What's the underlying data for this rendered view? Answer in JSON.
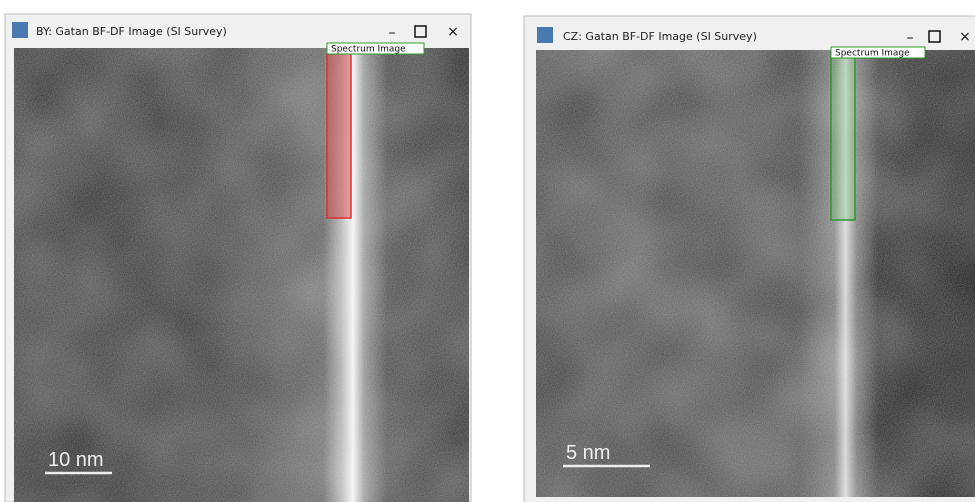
{
  "windows": [
    {
      "title": "BY: Gatan BF-DF Image (SI Survey)",
      "roi_label": "Spectrum Image",
      "scale_bar": "10 nm"
    },
    {
      "title": "CZ: Gatan BF-DF Image (SI Survey)",
      "roi_label": "Spectrum Image",
      "scale_bar": "5 nm"
    }
  ]
}
